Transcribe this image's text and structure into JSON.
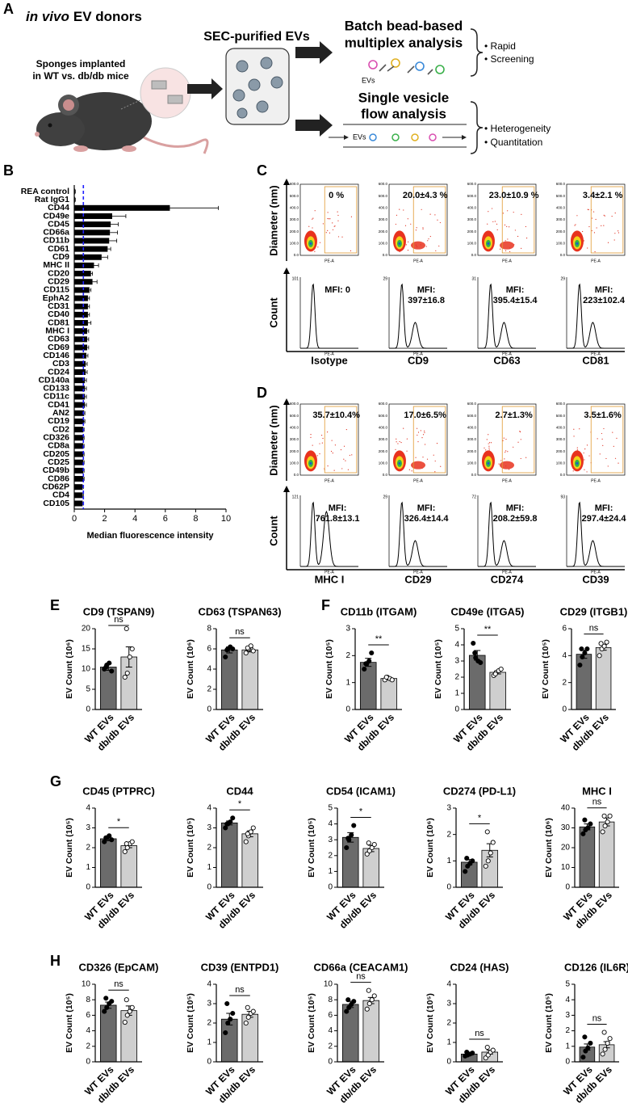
{
  "panel_labels": [
    "A",
    "B",
    "C",
    "D",
    "E",
    "F",
    "G",
    "H"
  ],
  "panel_a": {
    "title_italic": "in vivo",
    "title_rest": "EV donors",
    "sponges": [
      "Sponges implanted",
      "in WT vs. db/db mice"
    ],
    "sec": "SEC-purified EVs",
    "batch": [
      "Batch bead-based",
      "multiplex analysis"
    ],
    "evs_label": "EVs",
    "batch_notes": [
      "• Rapid",
      "• Screening"
    ],
    "single": [
      "Single vesicle",
      "flow analysis"
    ],
    "flow_evs": "EVs",
    "single_notes": [
      "• Heterogeneity",
      "• Quantitation"
    ]
  },
  "flow": {
    "axis_labels": {
      "diameter": "Diameter (nm)",
      "count": "Count",
      "pe": "PE-A"
    },
    "scatter_yticks": [
      "0.0",
      "100.0",
      "200.0",
      "300.0",
      "400.0",
      "500.0",
      "600.0"
    ],
    "panels": [
      {
        "markers": [
          "Isotype",
          "CD9",
          "CD63",
          "CD81"
        ],
        "gates": [
          "0 %",
          "20.0±4.3 %",
          "23.0±10.9 %",
          "3.4±2.1 %"
        ],
        "mfi": [
          [
            "MFI: 0"
          ],
          [
            "MFI:",
            "397±16.8"
          ],
          [
            "MFI:",
            "395.4±15.4"
          ],
          [
            "MFI:",
            "223±102.4"
          ]
        ],
        "hist_ymax": [
          "101",
          "29",
          "31",
          "29"
        ]
      },
      {
        "markers": [
          "MHC I",
          "CD29",
          "CD274",
          "CD39"
        ],
        "gates": [
          "35.7±10.4%",
          "17.0±6.5%",
          "2.7±1.3%",
          "3.5±1.6%"
        ],
        "mfi": [
          [
            "MFI:",
            "761.8±13.1"
          ],
          [
            "MFI:",
            "326.4±14.4"
          ],
          [
            "MFI:",
            "208.2±59.8"
          ],
          [
            "MFI:",
            "297.4±24.4"
          ]
        ],
        "hist_ymax": [
          "121",
          "29",
          "72",
          "93"
        ]
      }
    ]
  },
  "chart_data": [
    {
      "type": "barh",
      "xlabel": "Median fluorescence intensity",
      "categories": [
        "REA control",
        "Rat IgG1",
        "CD44",
        "CD49e",
        "CD45",
        "CD66a",
        "CD11b",
        "CD61",
        "CD9",
        "MHC II",
        "CD20",
        "CD29",
        "CD115",
        "EphA2",
        "CD31",
        "CD40",
        "CD81",
        "MHC I",
        "CD63",
        "CD69",
        "CD146",
        "CD3",
        "CD24",
        "CD140a",
        "CD133",
        "CD11c",
        "CD41",
        "AN2",
        "CD19",
        "CD2",
        "CD326",
        "CD8a",
        "CD205",
        "CD25",
        "CD49b",
        "CD86",
        "CD62P",
        "CD4",
        "CD105"
      ],
      "values": [
        0.05,
        0.05,
        6.3,
        2.5,
        2.4,
        2.35,
        2.3,
        2.2,
        1.8,
        1.3,
        1.1,
        1.2,
        1.0,
        0.9,
        0.9,
        0.9,
        0.9,
        0.85,
        0.85,
        0.85,
        0.8,
        0.75,
        0.75,
        0.7,
        0.7,
        0.7,
        0.7,
        0.65,
        0.65,
        0.6,
        0.6,
        0.6,
        0.6,
        0.6,
        0.6,
        0.6,
        0.55,
        0.55,
        0.55
      ],
      "errors": [
        0.02,
        0.02,
        3.2,
        0.9,
        0.5,
        0.5,
        0.5,
        0.2,
        0.4,
        0.3,
        0.1,
        0.3,
        0.1,
        0.1,
        0.1,
        0.1,
        0.2,
        0.1,
        0.1,
        0.1,
        0.1,
        0.1,
        0.1,
        0.1,
        0.1,
        0.1,
        0.1,
        0.05,
        0.05,
        0.05,
        0.05,
        0.05,
        0.05,
        0.05,
        0.05,
        0.05,
        0.05,
        0.05,
        0.05
      ],
      "color": "#000000",
      "threshold": 0.6,
      "threshold_color": "#1f1fff",
      "xlim": [
        0,
        10
      ],
      "xticks": [
        0,
        2,
        4,
        6,
        8,
        10
      ]
    },
    {
      "type": "bar",
      "title": "CD9 (TSPAN9)",
      "ylabel": "EV Count (10⁶)",
      "categories": [
        "WT EVs",
        "db/db EVs"
      ],
      "values": [
        10.5,
        13
      ],
      "errors": [
        0.8,
        2.5
      ],
      "points": [
        [
          10,
          11,
          11.5,
          9.5,
          10.5
        ],
        [
          8,
          9,
          13,
          15,
          20
        ]
      ],
      "colors": [
        "#6b6b6b",
        "#cfcfcf"
      ],
      "point_colors": [
        "#000000",
        "#ffffff"
      ],
      "ylim": [
        0,
        20
      ],
      "yticks": [
        0,
        5,
        10,
        15,
        20
      ],
      "significance": "ns"
    },
    {
      "type": "bar",
      "title": "CD63 (TSPAN63)",
      "ylabel": "EV Count (10⁶)",
      "categories": [
        "WT EVs",
        "db/db EVs"
      ],
      "values": [
        5.9,
        5.9
      ],
      "errors": [
        0.3,
        0.2
      ],
      "points": [
        [
          5.2,
          6.0,
          6.2,
          6.0,
          5.9
        ],
        [
          5.6,
          6.0,
          6.3,
          5.8,
          6.1
        ]
      ],
      "colors": [
        "#6b6b6b",
        "#cfcfcf"
      ],
      "point_colors": [
        "#000000",
        "#ffffff"
      ],
      "ylim": [
        0,
        8
      ],
      "yticks": [
        0,
        2,
        4,
        6,
        8
      ],
      "significance": "ns"
    },
    {
      "type": "bar",
      "title": "CD11b (ITGAM)",
      "ylabel": "EV Count (10⁵)",
      "categories": [
        "WT EVs",
        "db/db EVs"
      ],
      "values": [
        1.75,
        1.15
      ],
      "errors": [
        0.15,
        0.04
      ],
      "points": [
        [
          1.5,
          1.7,
          1.8,
          2.1,
          1.7
        ],
        [
          1.1,
          1.2,
          1.15,
          1.1,
          1.2
        ]
      ],
      "colors": [
        "#6b6b6b",
        "#cfcfcf"
      ],
      "point_colors": [
        "#000000",
        "#ffffff"
      ],
      "ylim": [
        0,
        3
      ],
      "yticks": [
        0,
        1,
        2,
        3
      ],
      "significance": "**"
    },
    {
      "type": "bar",
      "title": "CD49e (ITGA5)",
      "ylabel": "EV Count (10⁵)",
      "categories": [
        "WT EVs",
        "db/db EVs"
      ],
      "values": [
        3.35,
        2.3
      ],
      "errors": [
        0.3,
        0.1
      ],
      "points": [
        [
          4.1,
          3.2,
          3.0,
          2.9,
          3.5
        ],
        [
          2.1,
          2.3,
          2.4,
          2.5,
          2.2
        ]
      ],
      "colors": [
        "#6b6b6b",
        "#cfcfcf"
      ],
      "point_colors": [
        "#000000",
        "#ffffff"
      ],
      "ylim": [
        0,
        5
      ],
      "yticks": [
        0,
        1,
        2,
        3,
        4,
        5
      ],
      "significance": "**"
    },
    {
      "type": "bar",
      "title": "CD29 (ITGB1)",
      "ylabel": "EV Count (10⁵)",
      "categories": [
        "WT EVs",
        "db/db EVs"
      ],
      "values": [
        4.1,
        4.6
      ],
      "errors": [
        0.3,
        0.2
      ],
      "points": [
        [
          3.3,
          3.9,
          4.2,
          4.5,
          4.5
        ],
        [
          4.0,
          4.5,
          4.7,
          5.0,
          4.9
        ]
      ],
      "colors": [
        "#6b6b6b",
        "#cfcfcf"
      ],
      "point_colors": [
        "#000000",
        "#ffffff"
      ],
      "ylim": [
        0,
        6
      ],
      "yticks": [
        0,
        2,
        4,
        6
      ],
      "significance": "ns"
    },
    {
      "type": "bar",
      "title": "CD45 (PTPRC)",
      "ylabel": "EV Count (10⁵)",
      "categories": [
        "WT EVs",
        "db/db EVs"
      ],
      "values": [
        2.45,
        2.1
      ],
      "errors": [
        0.1,
        0.1
      ],
      "points": [
        [
          2.3,
          2.5,
          2.6,
          2.4,
          2.5
        ],
        [
          1.8,
          2.0,
          2.2,
          2.3,
          2.2
        ]
      ],
      "colors": [
        "#6b6b6b",
        "#cfcfcf"
      ],
      "point_colors": [
        "#000000",
        "#ffffff"
      ],
      "ylim": [
        0,
        4
      ],
      "yticks": [
        0,
        1,
        2,
        3,
        4
      ],
      "significance": "*"
    },
    {
      "type": "bar",
      "title": "CD44",
      "ylabel": "EV Count (10⁵)",
      "categories": [
        "WT EVs",
        "db/db EVs"
      ],
      "values": [
        3.25,
        2.7
      ],
      "errors": [
        0.1,
        0.15
      ],
      "points": [
        [
          3.0,
          3.2,
          3.3,
          3.5,
          3.2
        ],
        [
          2.3,
          2.6,
          2.8,
          3.0,
          2.7
        ]
      ],
      "colors": [
        "#6b6b6b",
        "#cfcfcf"
      ],
      "point_colors": [
        "#000000",
        "#ffffff"
      ],
      "ylim": [
        0,
        4
      ],
      "yticks": [
        0,
        1,
        2,
        3,
        4
      ],
      "significance": "*"
    },
    {
      "type": "bar",
      "title": "CD54 (ICAM1)",
      "ylabel": "EV Count (10⁵)",
      "categories": [
        "WT EVs",
        "db/db EVs"
      ],
      "values": [
        3.15,
        2.45
      ],
      "errors": [
        0.3,
        0.2
      ],
      "points": [
        [
          2.5,
          3.0,
          3.3,
          3.9,
          3.1
        ],
        [
          2.1,
          2.3,
          2.5,
          2.7,
          2.8
        ]
      ],
      "colors": [
        "#6b6b6b",
        "#cfcfcf"
      ],
      "point_colors": [
        "#000000",
        "#ffffff"
      ],
      "ylim": [
        0,
        5
      ],
      "yticks": [
        0,
        1,
        2,
        3,
        4,
        5
      ],
      "significance": "*"
    },
    {
      "type": "bar",
      "title": "CD274 (PD-L1)",
      "ylabel": "EV Count (10⁶)",
      "categories": [
        "WT EVs",
        "db/db EVs"
      ],
      "values": [
        0.95,
        1.4
      ],
      "errors": [
        0.1,
        0.25
      ],
      "points": [
        [
          0.6,
          0.8,
          0.9,
          1.0,
          1.1
        ],
        [
          0.8,
          1.0,
          1.3,
          1.7,
          2.1
        ]
      ],
      "colors": [
        "#6b6b6b",
        "#cfcfcf"
      ],
      "point_colors": [
        "#000000",
        "#ffffff"
      ],
      "ylim": [
        0,
        3
      ],
      "yticks": [
        0,
        1,
        2,
        3
      ],
      "significance": "*"
    },
    {
      "type": "bar",
      "title": "MHC I",
      "ylabel": "EV Count (10⁶)",
      "categories": [
        "WT EVs",
        "db/db EVs"
      ],
      "values": [
        30.5,
        33
      ],
      "errors": [
        1.5,
        2
      ],
      "points": [
        [
          27,
          29,
          30,
          32,
          34
        ],
        [
          28,
          31,
          33,
          36,
          36
        ]
      ],
      "colors": [
        "#6b6b6b",
        "#cfcfcf"
      ],
      "point_colors": [
        "#000000",
        "#ffffff"
      ],
      "ylim": [
        0,
        40
      ],
      "yticks": [
        0,
        10,
        20,
        30,
        40
      ],
      "significance": "ns"
    },
    {
      "type": "bar",
      "title": "CD326 (EpCAM)",
      "ylabel": "EV Count (10⁵)",
      "categories": [
        "WT EVs",
        "db/db EVs"
      ],
      "values": [
        7.3,
        6.6
      ],
      "errors": [
        0.4,
        0.6
      ],
      "points": [
        [
          6.5,
          7,
          7.5,
          7.8,
          8.2
        ],
        [
          5.1,
          6,
          6.5,
          7,
          8
        ]
      ],
      "colors": [
        "#6b6b6b",
        "#cfcfcf"
      ],
      "point_colors": [
        "#000000",
        "#ffffff"
      ],
      "ylim": [
        0,
        10
      ],
      "yticks": [
        0,
        2,
        4,
        6,
        8,
        10
      ],
      "significance": "ns"
    },
    {
      "type": "bar",
      "title": "CD39 (ENTPD1)",
      "ylabel": "EV Count (10⁵)",
      "categories": [
        "WT EVs",
        "db/db EVs"
      ],
      "values": [
        2.2,
        2.45
      ],
      "errors": [
        0.3,
        0.15
      ],
      "points": [
        [
          1.5,
          2,
          2.2,
          2.5,
          3.0
        ],
        [
          2.0,
          2.3,
          2.5,
          2.6,
          2.8
        ]
      ],
      "colors": [
        "#6b6b6b",
        "#cfcfcf"
      ],
      "point_colors": [
        "#000000",
        "#ffffff"
      ],
      "ylim": [
        0,
        4
      ],
      "yticks": [
        0,
        1,
        2,
        3,
        4
      ],
      "significance": "ns"
    },
    {
      "type": "bar",
      "title": "CD66a (CEACAM1)",
      "ylabel": "EV Count (10⁵)",
      "categories": [
        "WT EVs",
        "db/db EVs"
      ],
      "values": [
        7.4,
        7.9
      ],
      "errors": [
        0.4,
        0.4
      ],
      "points": [
        [
          6.5,
          7,
          7.4,
          7.8,
          8.0
        ],
        [
          6.8,
          7.5,
          8,
          8.5,
          9.2
        ]
      ],
      "colors": [
        "#6b6b6b",
        "#cfcfcf"
      ],
      "point_colors": [
        "#000000",
        "#ffffff"
      ],
      "ylim": [
        0,
        10
      ],
      "yticks": [
        0,
        2,
        4,
        6,
        8,
        10
      ],
      "significance": "ns"
    },
    {
      "type": "bar",
      "title": "CD24 (HAS)",
      "ylabel": "EV Count (10⁵)",
      "categories": [
        "WT EVs",
        "db/db EVs"
      ],
      "values": [
        0.4,
        0.5
      ],
      "errors": [
        0.05,
        0.1
      ],
      "points": [
        [
          0.3,
          0.35,
          0.4,
          0.45,
          0.5
        ],
        [
          0.2,
          0.35,
          0.5,
          0.6,
          0.75
        ]
      ],
      "colors": [
        "#6b6b6b",
        "#cfcfcf"
      ],
      "point_colors": [
        "#000000",
        "#ffffff"
      ],
      "ylim": [
        0,
        4
      ],
      "yticks": [
        0,
        1,
        2,
        3,
        4
      ],
      "significance": "ns"
    },
    {
      "type": "bar",
      "title": "CD126 (IL6R)",
      "ylabel": "EV Count (10⁵)",
      "categories": [
        "WT EVs",
        "db/db EVs"
      ],
      "values": [
        0.95,
        1.1
      ],
      "errors": [
        0.2,
        0.2
      ],
      "points": [
        [
          0.3,
          0.7,
          0.9,
          1.2,
          1.6
        ],
        [
          0.5,
          0.8,
          1.2,
          1.5,
          1.9
        ]
      ],
      "colors": [
        "#6b6b6b",
        "#cfcfcf"
      ],
      "point_colors": [
        "#000000",
        "#ffffff"
      ],
      "ylim": [
        0,
        5
      ],
      "yticks": [
        0,
        1,
        2,
        3,
        4,
        5
      ],
      "significance": "ns"
    }
  ]
}
